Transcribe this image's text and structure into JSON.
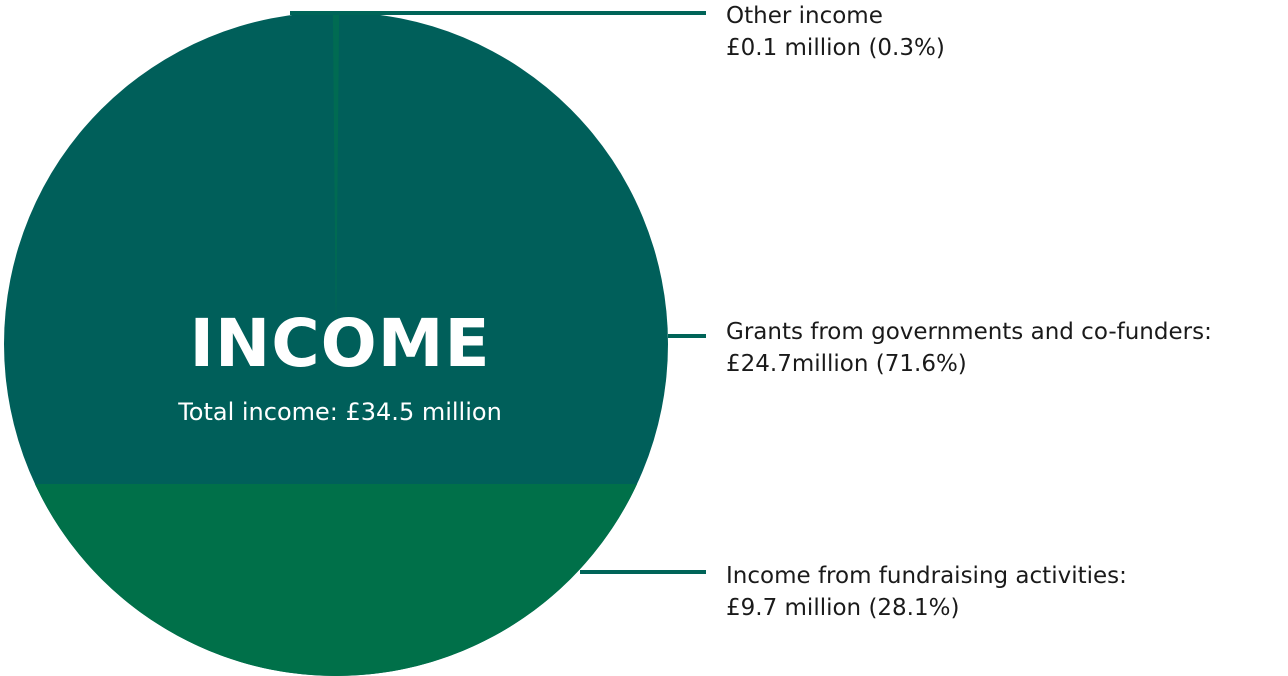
{
  "chart_data": {
    "type": "pie",
    "title": "INCOME",
    "subtitle": "Total income: £34.5 million",
    "slices": [
      {
        "label": "Grants from governments and co-funders:",
        "value_text": "£24.7million (71.6%)",
        "value": 24.7,
        "percent": 71.6,
        "color": "#005f5a"
      },
      {
        "label": "Income from fundraising activities:",
        "value_text": "£9.7 million (28.1%)",
        "value": 9.7,
        "percent": 28.1,
        "color": "#007049"
      },
      {
        "label": "Other income",
        "value_text": "£0.1 million (0.3%)",
        "value": 0.1,
        "percent": 0.3,
        "color": "#006b52"
      }
    ],
    "total": 34.5,
    "leader_line_color": "#006458"
  }
}
